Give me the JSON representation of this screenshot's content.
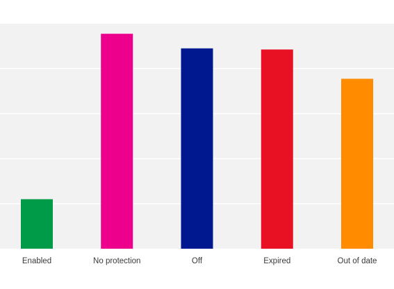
{
  "chart_data": {
    "type": "bar",
    "categories": [
      "Enabled",
      "No protection",
      "Off",
      "Expired",
      "Out of date"
    ],
    "values": [
      22,
      95.5,
      89,
      88.5,
      75.5
    ],
    "colors": [
      "#009b48",
      "#ec008c",
      "#00188f",
      "#e81123",
      "#ff8c00"
    ],
    "ylim": [
      0,
      100
    ],
    "gridlines": [
      20,
      40,
      60,
      80
    ],
    "grid": true,
    "plot_background": "#f2f2f2",
    "gridline_color": "#ffffff",
    "title": "",
    "xlabel": "",
    "ylabel": ""
  }
}
